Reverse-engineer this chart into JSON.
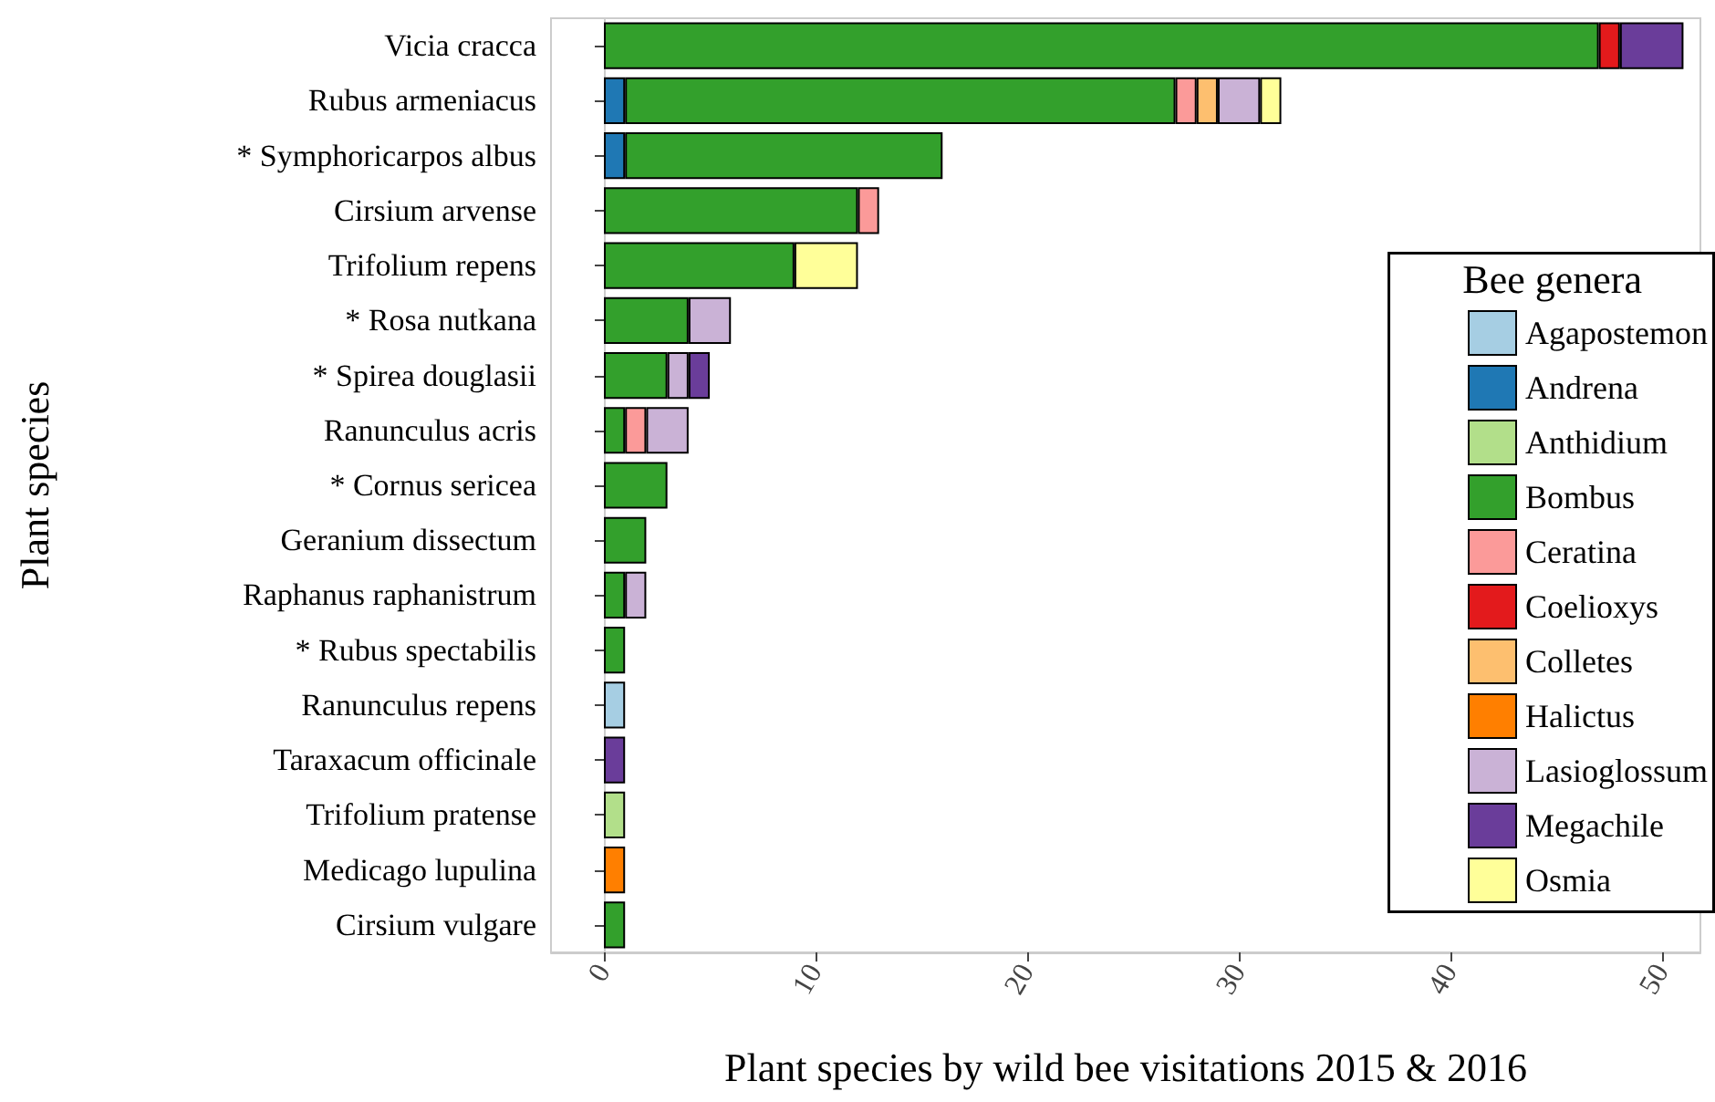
{
  "chart_data": {
    "type": "bar",
    "orientation": "horizontal",
    "stacked": true,
    "xlabel": "Plant species by wild bee visitations 2015 & 2016",
    "ylabel": "Plant species",
    "legend_title": "Bee genera",
    "legend": "right",
    "categories": [
      "Vicia cracca",
      "Rubus armeniacus",
      "* Symphoricarpos albus",
      "Cirsium arvense",
      "Trifolium repens",
      "* Rosa nutkana",
      "* Spirea douglasii",
      "Ranunculus acris",
      "* Cornus sericea",
      "Geranium dissectum",
      "Raphanus raphanistrum",
      "* Rubus spectabilis",
      "Ranunculus repens",
      "Taraxacum officinale",
      "Trifolium pratense",
      "Medicago lupulina",
      "Cirsium vulgare"
    ],
    "xlim": [
      -2.5,
      51.8
    ],
    "xticks": [
      0,
      10,
      20,
      30,
      40,
      50
    ],
    "series": [
      {
        "name": "Agapostemon",
        "color": "#a6cee3",
        "values": [
          null,
          null,
          null,
          null,
          null,
          null,
          null,
          null,
          null,
          null,
          null,
          null,
          1,
          null,
          null,
          null,
          null
        ]
      },
      {
        "name": "Andrena",
        "color": "#1f78b4",
        "values": [
          null,
          1,
          1,
          null,
          null,
          null,
          null,
          null,
          null,
          null,
          null,
          null,
          null,
          null,
          null,
          null,
          null
        ]
      },
      {
        "name": "Anthidium",
        "color": "#b2df8a",
        "values": [
          null,
          null,
          null,
          null,
          null,
          null,
          null,
          null,
          null,
          null,
          null,
          null,
          null,
          null,
          1,
          null,
          null
        ]
      },
      {
        "name": "Bombus",
        "color": "#33a02c",
        "values": [
          47,
          26,
          15,
          12,
          9,
          4,
          3,
          1,
          3,
          2,
          1,
          1,
          null,
          null,
          null,
          null,
          1
        ]
      },
      {
        "name": "Ceratina",
        "color": "#fb9a99",
        "values": [
          null,
          1,
          null,
          1,
          null,
          null,
          null,
          1,
          null,
          null,
          null,
          null,
          null,
          null,
          null,
          null,
          null
        ]
      },
      {
        "name": "Coelioxys",
        "color": "#e31a1c",
        "values": [
          1,
          null,
          null,
          null,
          null,
          null,
          null,
          null,
          null,
          null,
          null,
          null,
          null,
          null,
          null,
          null,
          null
        ]
      },
      {
        "name": "Colletes",
        "color": "#fdbf6f",
        "values": [
          null,
          1,
          null,
          null,
          null,
          null,
          null,
          null,
          null,
          null,
          null,
          null,
          null,
          null,
          null,
          null,
          null
        ]
      },
      {
        "name": "Halictus",
        "color": "#ff7f00",
        "values": [
          null,
          null,
          null,
          null,
          null,
          null,
          null,
          null,
          null,
          null,
          null,
          null,
          null,
          null,
          null,
          1,
          null
        ]
      },
      {
        "name": "Lasioglossum",
        "color": "#cab2d6",
        "values": [
          null,
          2,
          null,
          null,
          null,
          2,
          1,
          2,
          null,
          null,
          1,
          null,
          null,
          null,
          null,
          null,
          null
        ]
      },
      {
        "name": "Megachile",
        "color": "#6a3d9a",
        "values": [
          3,
          null,
          null,
          null,
          null,
          null,
          1,
          null,
          null,
          null,
          null,
          null,
          null,
          1,
          null,
          null,
          null
        ]
      },
      {
        "name": "Osmia",
        "color": "#ffff99",
        "values": [
          null,
          1,
          null,
          null,
          3,
          null,
          null,
          null,
          null,
          null,
          null,
          null,
          null,
          null,
          null,
          null,
          null
        ]
      }
    ]
  }
}
